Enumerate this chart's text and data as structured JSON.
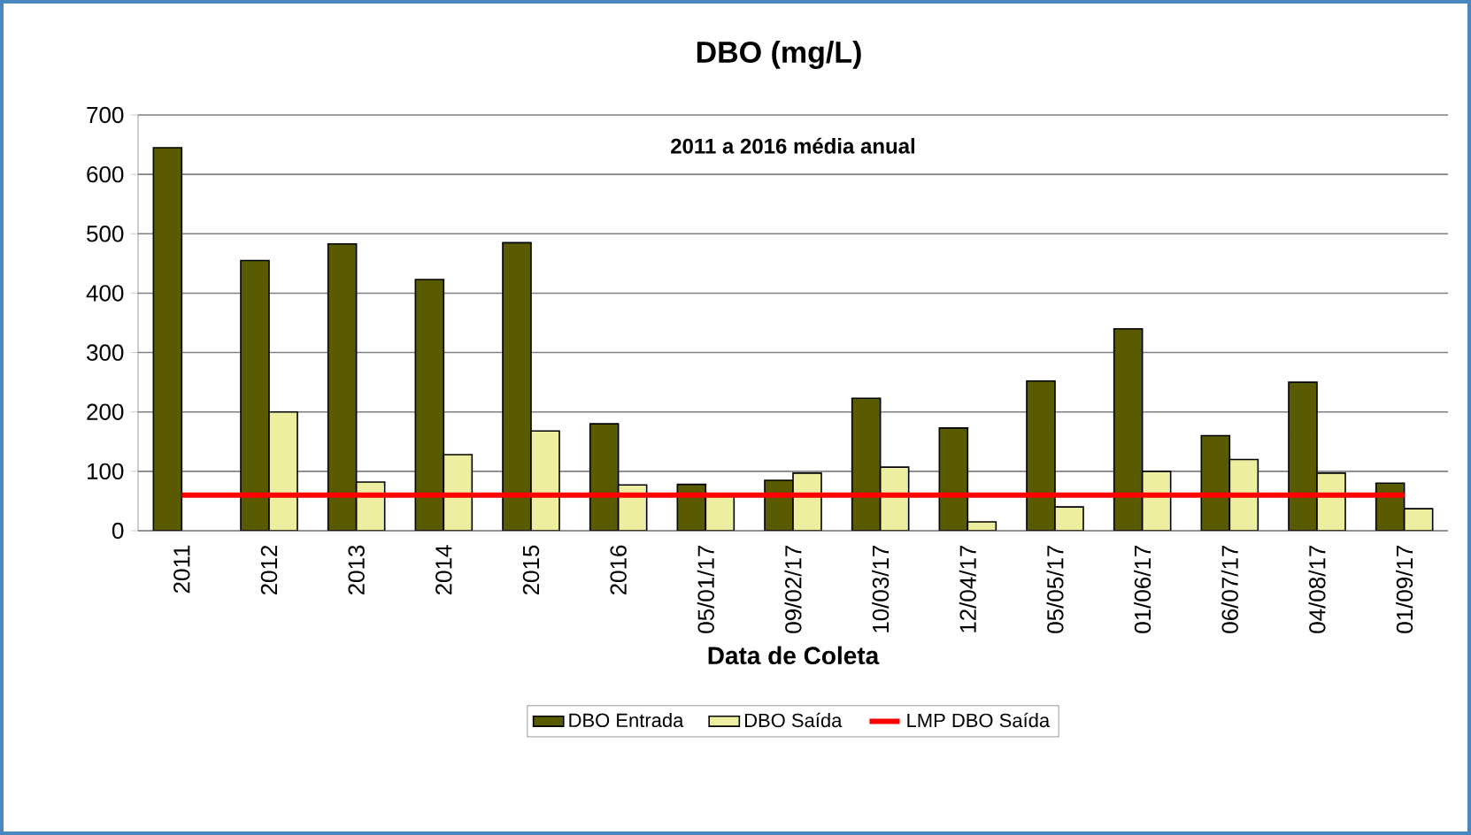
{
  "chart_data": {
    "type": "bar",
    "title": "DBO (mg/L)",
    "xlabel": "Data de Coleta",
    "annotations": [
      "2011 a 2016 média anual"
    ],
    "categories": [
      "2011",
      "2012",
      "2013",
      "2014",
      "2015",
      "2016",
      "05/01/17",
      "09/02/17",
      "10/03/17",
      "12/04/17",
      "05/05/17",
      "01/06/17",
      "06/07/17",
      "04/08/17",
      "01/09/17"
    ],
    "series": [
      {
        "name": "DBO Entrada",
        "color": "#5a5a00",
        "values": [
          645,
          455,
          483,
          423,
          485,
          180,
          78,
          85,
          223,
          173,
          252,
          340,
          160,
          250,
          80
        ]
      },
      {
        "name": "DBO Saída",
        "color": "#eeeea0",
        "values": [
          null,
          200,
          82,
          128,
          168,
          77,
          62,
          97,
          107,
          15,
          40,
          100,
          120,
          97,
          37
        ]
      },
      {
        "name": "LMP DBO Saída",
        "type": "line",
        "color": "#ff0000",
        "values": [
          60,
          60,
          60,
          60,
          60,
          60,
          60,
          60,
          60,
          60,
          60,
          60,
          60,
          60,
          60
        ]
      }
    ],
    "ylim": [
      0,
      700
    ],
    "yticks": [
      0,
      100,
      200,
      300,
      400,
      500,
      600,
      700
    ],
    "grid": "y",
    "legend": "bottom"
  }
}
